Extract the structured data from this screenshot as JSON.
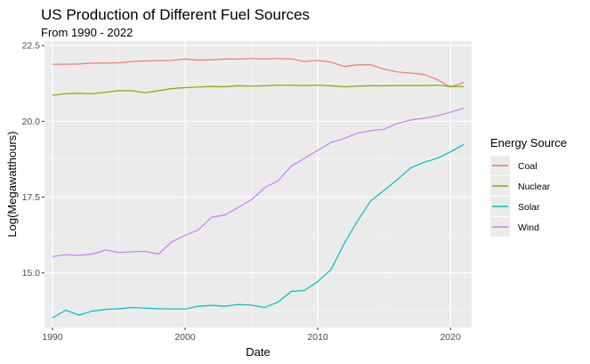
{
  "chart_data": {
    "type": "line",
    "title": "US Production of Different Fuel Sources",
    "subtitle": "From 1990 - 2022",
    "xlabel": "Date",
    "ylabel": "Log(Megawatthours)",
    "xlim": [
      1989.4,
      2021.6
    ],
    "ylim": [
      13.2,
      22.65
    ],
    "x_ticks": [
      1990,
      2000,
      2010,
      2020
    ],
    "x_tick_labels": [
      "1990",
      "2000",
      "2010",
      "2020"
    ],
    "y_ticks": [
      15.0,
      17.5,
      20.0,
      22.5
    ],
    "y_tick_labels": [
      "15.0",
      "17.5",
      "20.0",
      "22.5"
    ],
    "grid": true,
    "legend": {
      "title": "Energy Source",
      "placement": "right"
    },
    "x": [
      1990,
      1991,
      1992,
      1993,
      1994,
      1995,
      1996,
      1997,
      1998,
      1999,
      2000,
      2001,
      2002,
      2003,
      2004,
      2005,
      2006,
      2007,
      2008,
      2009,
      2010,
      2011,
      2012,
      2013,
      2014,
      2015,
      2016,
      2017,
      2018,
      2019,
      2020,
      2021
    ],
    "series": [
      {
        "name": "Coal",
        "color": "#F8766D",
        "values": [
          21.88,
          21.88,
          21.89,
          21.92,
          21.92,
          21.93,
          21.97,
          21.99,
          22.0,
          22.01,
          22.05,
          22.02,
          22.03,
          22.05,
          22.05,
          22.07,
          22.06,
          22.07,
          22.06,
          21.97,
          22.01,
          21.95,
          21.81,
          21.86,
          21.86,
          21.72,
          21.63,
          21.59,
          21.55,
          21.38,
          21.13,
          21.28
        ]
      },
      {
        "name": "Nuclear",
        "color": "#7CAE00",
        "values": [
          20.86,
          20.91,
          20.92,
          20.91,
          20.96,
          21.01,
          21.01,
          20.94,
          21.01,
          21.08,
          21.11,
          21.13,
          21.15,
          21.14,
          21.17,
          21.16,
          21.17,
          21.19,
          21.19,
          21.18,
          21.19,
          21.17,
          21.14,
          21.16,
          21.17,
          21.17,
          21.18,
          21.18,
          21.18,
          21.19,
          21.15,
          21.15
        ]
      },
      {
        "name": "Solar",
        "color": "#00BFC4",
        "values": [
          13.52,
          13.77,
          13.61,
          13.74,
          13.8,
          13.82,
          13.86,
          13.84,
          13.82,
          13.81,
          13.81,
          13.9,
          13.93,
          13.9,
          13.96,
          13.94,
          13.86,
          14.04,
          14.39,
          14.42,
          14.72,
          15.11,
          15.98,
          16.72,
          17.38,
          17.72,
          18.08,
          18.46,
          18.65,
          18.78,
          18.99,
          19.24
        ]
      },
      {
        "name": "Wind",
        "color": "#C77CFF",
        "values": [
          15.54,
          15.6,
          15.58,
          15.62,
          15.76,
          15.67,
          15.7,
          15.71,
          15.62,
          16.03,
          16.24,
          16.42,
          16.84,
          16.91,
          17.16,
          17.41,
          17.81,
          18.04,
          18.52,
          18.78,
          19.04,
          19.3,
          19.44,
          19.61,
          19.69,
          19.74,
          19.93,
          20.04,
          20.1,
          20.18,
          20.3,
          20.43
        ]
      }
    ]
  }
}
